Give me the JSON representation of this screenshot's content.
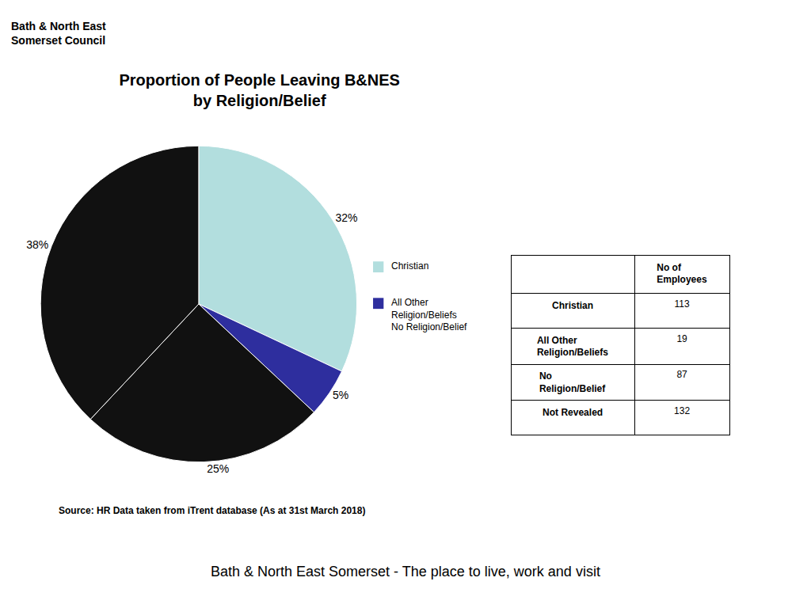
{
  "chart_data": [
    {
      "type": "pie",
      "title": "Proportion of People Leaving B&NES\nby Religion/Belief",
      "categories": [
        "Christian",
        "All Other\nReligion/Beliefs\nNo Religion/Belief",
        null,
        null
      ],
      "values": [
        32,
        5,
        25,
        38
      ],
      "value_labels": [
        "32%",
        "5%",
        "25%",
        "38%"
      ],
      "colors": [
        "#b2dede",
        "#2e2e9e",
        "#111111",
        "#111111"
      ],
      "legend": "right",
      "data_labels": true,
      "annotations": [
        "Bath & North East\nSomerset Council",
        "Source: HR Data taken from iTrent database (As at 31st March 2018)",
        "Bath & North East Somerset - The place to live, work and visit"
      ]
    },
    {
      "type": "table",
      "header": "No of\nEmployees",
      "categories": [
        "Christian",
        "All Other\nReligion/Beliefs",
        "No\nReligion/Belief",
        "Not Revealed"
      ],
      "values": [
        113,
        19,
        87,
        132
      ]
    }
  ]
}
